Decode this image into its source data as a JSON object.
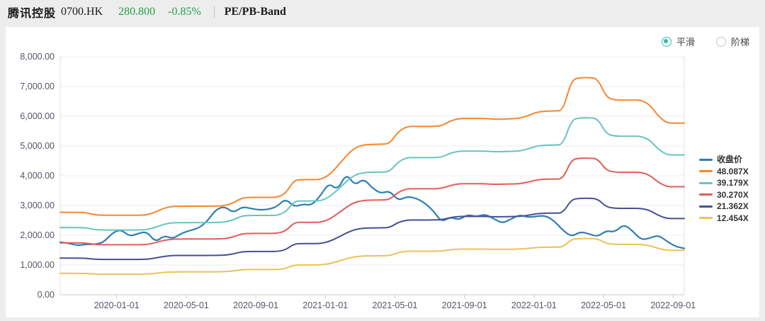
{
  "header": {
    "stock_name": "腾讯控股",
    "ticker": "0700.HK",
    "price": "280.800",
    "change_pct": "-0.85%",
    "band_label": "PE/PB-Band",
    "price_color": "#21a24c"
  },
  "controls": {
    "smooth_label": "平滑",
    "step_label": "阶梯",
    "selected": "平滑",
    "accent_color": "#35b8b2"
  },
  "chart_data": {
    "type": "line",
    "title": "PE/PB-Band",
    "legend_position": "right",
    "grid": true,
    "y_axis": {
      "min": 0,
      "max": 8000,
      "tick_step": 1000,
      "tick_labels": [
        "0.00",
        "1,000.00",
        "2,000.00",
        "3,000.00",
        "4,000.00",
        "5,000.00",
        "6,000.00",
        "7,000.00",
        "8,000.00"
      ]
    },
    "x_axis": {
      "tick_labels": [
        "2020-01-01",
        "2020-05-01",
        "2020-09-01",
        "2021-01-01",
        "2021-05-01",
        "2021-09-01",
        "2022-01-01",
        "2022-05-01",
        "2022-09-01"
      ],
      "range_note": "series points are evenly spaced from late 2019-09 to late 2022-09"
    },
    "band_base_multiple": 12.454,
    "band_note": "each PE band value = band_base_values[i] * multiple / band_base_multiple",
    "band_base_values": [
      718,
      718,
      718,
      715,
      695,
      692,
      692,
      692,
      692,
      692,
      695,
      720,
      755,
      770,
      770,
      771,
      771,
      771,
      772,
      775,
      800,
      845,
      848,
      848,
      848,
      848,
      880,
      1000,
      1002,
      1002,
      1002,
      1040,
      1120,
      1210,
      1280,
      1305,
      1310,
      1310,
      1315,
      1420,
      1465,
      1465,
      1465,
      1465,
      1470,
      1512,
      1535,
      1535,
      1535,
      1535,
      1528,
      1528,
      1532,
      1535,
      1558,
      1590,
      1598,
      1600,
      1602,
      1870,
      1890,
      1890,
      1882,
      1720,
      1694,
      1694,
      1694,
      1694,
      1655,
      1555,
      1494,
      1494,
      1494
    ],
    "series": [
      {
        "name": "收盘价",
        "color": "#2e7eb5",
        "kind": "price",
        "values": [
          1769,
          1730,
          1650,
          1700,
          1690,
          1760,
          2075,
          2195,
          1960,
          2060,
          2125,
          1765,
          1990,
          1880,
          2070,
          2160,
          2245,
          2480,
          2880,
          2965,
          2750,
          2960,
          2900,
          2850,
          2870,
          2960,
          3230,
          2950,
          3050,
          3000,
          3320,
          3760,
          3510,
          4080,
          3670,
          3905,
          3590,
          3400,
          3500,
          3160,
          3300,
          3250,
          3100,
          2840,
          2440,
          2620,
          2510,
          2700,
          2620,
          2710,
          2560,
          2400,
          2540,
          2690,
          2600,
          2640,
          2660,
          2480,
          2165,
          1950,
          2120,
          2050,
          1950,
          2160,
          2100,
          2370,
          2160,
          1845,
          1900,
          2005,
          1800,
          1620,
          1560
        ]
      },
      {
        "name": "48.087X",
        "color": "#f8862d",
        "kind": "pe_band",
        "multiple": 48.087
      },
      {
        "name": "39.179X",
        "color": "#68c4bf",
        "kind": "pe_band",
        "multiple": 39.179
      },
      {
        "name": "30.270X",
        "color": "#e25c59",
        "kind": "pe_band",
        "multiple": 30.27
      },
      {
        "name": "21.362X",
        "color": "#474f93",
        "kind": "pe_band",
        "multiple": 21.362
      },
      {
        "name": "12.454X",
        "color": "#e7c456",
        "kind": "pe_band",
        "multiple": 12.454
      }
    ]
  }
}
